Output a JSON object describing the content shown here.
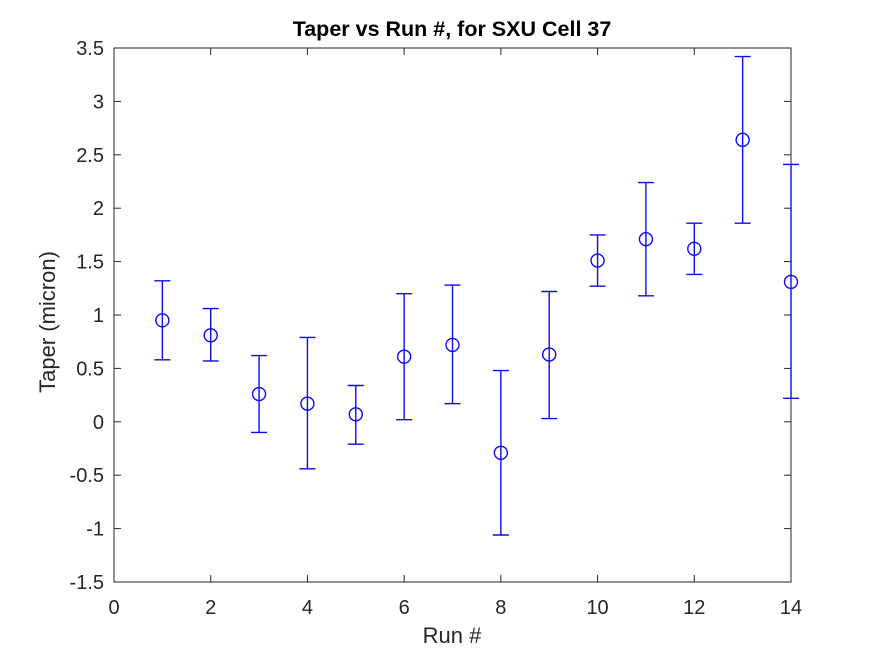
{
  "chart_data": {
    "type": "scatter",
    "subtype": "errorbar",
    "title": "Taper vs Run #, for SXU Cell 37",
    "xlabel": "Run #",
    "ylabel": "Taper (micron)",
    "xlim": [
      0,
      14
    ],
    "ylim": [
      -1.5,
      3.5
    ],
    "xticks": [
      0,
      2,
      4,
      6,
      8,
      10,
      12,
      14
    ],
    "yticks": [
      -1.5,
      -1,
      -0.5,
      0,
      0.5,
      1,
      1.5,
      2,
      2.5,
      3,
      3.5
    ],
    "grid": false,
    "legend": "none",
    "marker": "open-circle",
    "x": [
      1,
      2,
      3,
      4,
      5,
      6,
      7,
      8,
      9,
      10,
      11,
      12,
      13,
      14
    ],
    "y": [
      0.95,
      0.81,
      0.26,
      0.17,
      0.07,
      0.61,
      0.72,
      -0.29,
      0.63,
      1.51,
      1.71,
      1.62,
      2.64,
      1.31
    ],
    "y_lower": [
      0.58,
      0.57,
      -0.1,
      -0.44,
      -0.21,
      0.02,
      0.17,
      -1.06,
      0.03,
      1.27,
      1.18,
      1.38,
      1.86,
      0.22
    ],
    "y_upper": [
      1.32,
      1.06,
      0.62,
      0.79,
      0.34,
      1.2,
      1.28,
      0.48,
      1.22,
      1.75,
      2.24,
      1.86,
      3.42,
      2.41
    ]
  },
  "colors": {
    "series": "#0b0bf0",
    "axis": "#262626",
    "tick_label": "#262626",
    "title": "#000000",
    "background": "#ffffff"
  }
}
